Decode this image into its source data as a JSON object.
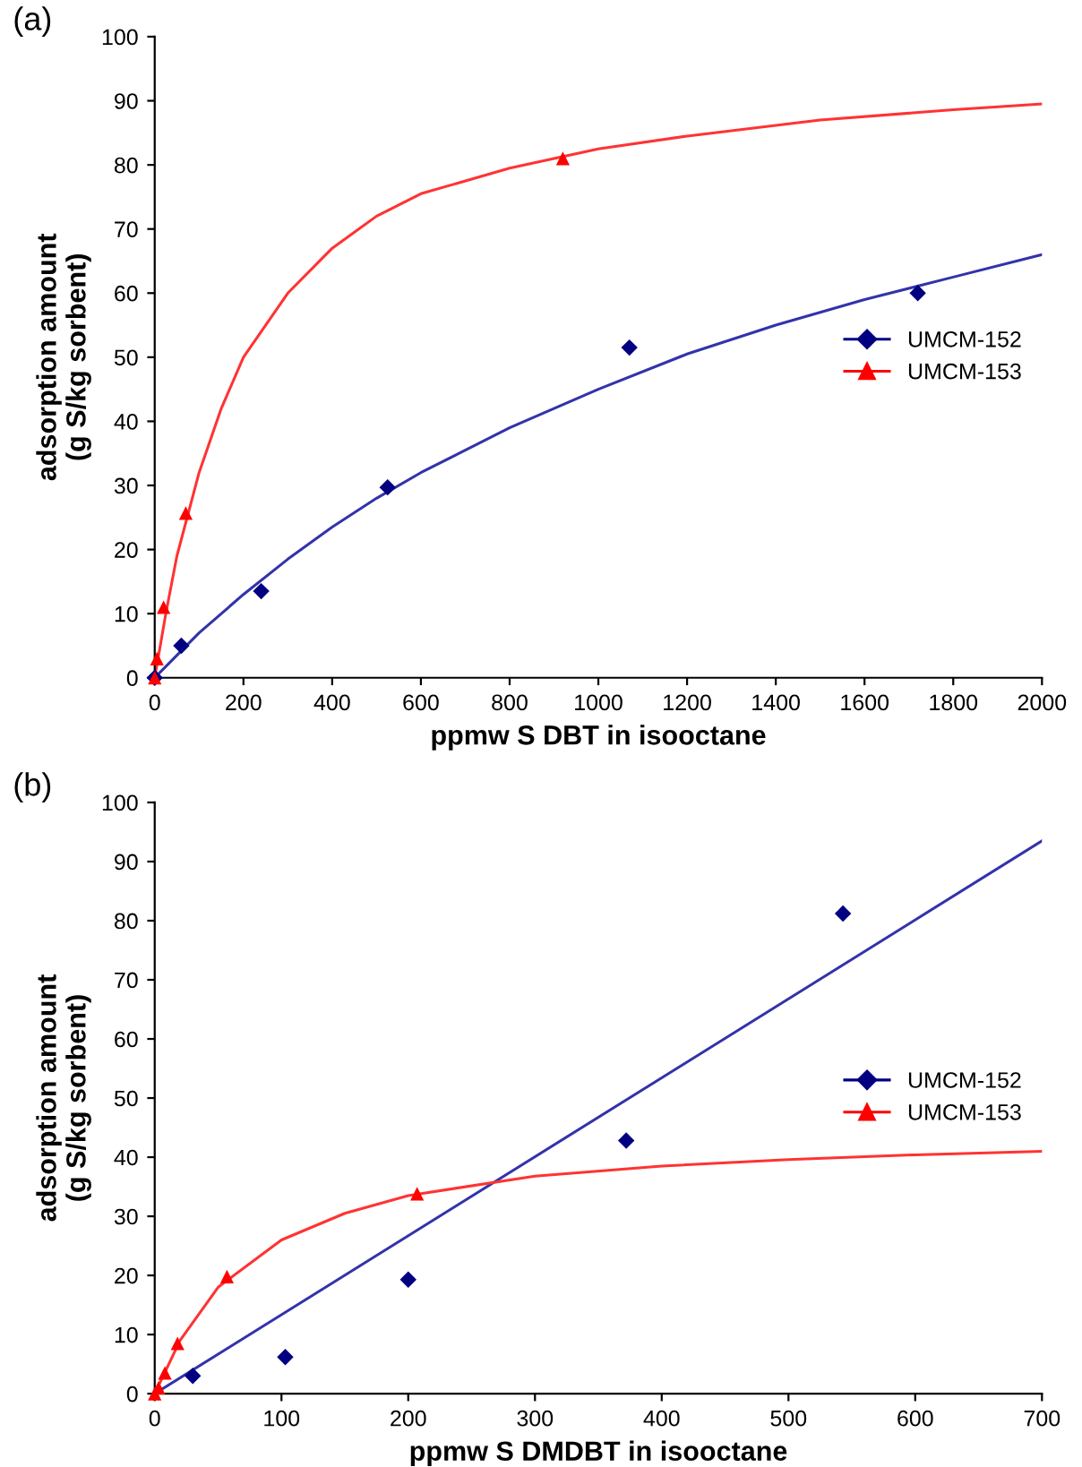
{
  "chart_data": [
    {
      "type": "scatter",
      "title": "(a)",
      "xlabel": "ppmw S DBT in isooctane",
      "ylabel": "adsorption amount\n(g S/kg sorbent)",
      "xlim": [
        0,
        2000
      ],
      "xticks": [
        0,
        200,
        400,
        600,
        800,
        1000,
        1200,
        1400,
        1600,
        1800,
        2000
      ],
      "ylim": [
        0,
        100
      ],
      "yticks": [
        0,
        10,
        20,
        30,
        40,
        50,
        60,
        70,
        80,
        90,
        100
      ],
      "grid": false,
      "legend": "right",
      "series": [
        {
          "name": "UMCM-152",
          "marker": "diamond",
          "color": "#000080",
          "x": [
            0,
            60,
            240,
            525,
            1070,
            1720
          ],
          "values": [
            0,
            5,
            13.5,
            29.7,
            51.5,
            60
          ]
        },
        {
          "name": "UMCM-153",
          "marker": "triangle",
          "color": "#ff0000",
          "x": [
            0,
            5,
            20,
            70,
            920
          ],
          "values": [
            0,
            3,
            11,
            25.7,
            81
          ]
        },
        {
          "type": "line",
          "marker": "none",
          "color": "#3333aa",
          "x": [
            0,
            100,
            200,
            300,
            400,
            500,
            600,
            800,
            1000,
            1200,
            1400,
            1600,
            1800,
            2000
          ],
          "values": [
            0,
            7,
            13,
            18.5,
            23.5,
            28,
            32,
            39,
            45,
            50.5,
            55,
            59,
            62.5,
            66
          ]
        },
        {
          "type": "line",
          "marker": "none",
          "color": "#ff3333",
          "x": [
            0,
            25,
            50,
            100,
            150,
            200,
            300,
            400,
            500,
            600,
            800,
            1000,
            1200,
            1500,
            1800,
            2000
          ],
          "values": [
            0,
            10,
            19,
            32,
            42,
            50,
            60,
            67,
            72,
            75.5,
            79.5,
            82.5,
            84.5,
            87,
            88.6,
            89.5
          ]
        }
      ]
    },
    {
      "type": "scatter",
      "title": "(b)",
      "xlabel": "ppmw S DMDBT in isooctane",
      "ylabel": "adsorption amount\n(g S/kg sorbent)",
      "xlim": [
        0,
        700
      ],
      "xticks": [
        0,
        100,
        200,
        300,
        400,
        500,
        600,
        700
      ],
      "ylim": [
        0,
        100
      ],
      "yticks": [
        0,
        10,
        20,
        30,
        40,
        50,
        60,
        70,
        80,
        90,
        100
      ],
      "grid": false,
      "legend": "right",
      "series": [
        {
          "name": "UMCM-152",
          "marker": "diamond",
          "color": "#000080",
          "x": [
            30,
            103,
            200,
            372,
            543
          ],
          "values": [
            3,
            6.2,
            19.3,
            42.8,
            81.2
          ]
        },
        {
          "name": "UMCM-153",
          "marker": "triangle",
          "color": "#ff0000",
          "x": [
            0,
            3,
            8,
            18,
            57,
            207
          ],
          "values": [
            0,
            1,
            3.5,
            8.5,
            19.8,
            33.8
          ]
        },
        {
          "type": "line",
          "marker": "none",
          "color": "#3333aa",
          "x": [
            0,
            700
          ],
          "values": [
            0,
            93.5
          ]
        },
        {
          "type": "line",
          "marker": "none",
          "color": "#ff3333",
          "x": [
            0,
            20,
            50,
            100,
            150,
            200,
            300,
            400,
            500,
            600,
            700
          ],
          "values": [
            0,
            9,
            18,
            26,
            30.5,
            33.5,
            36.8,
            38.5,
            39.6,
            40.4,
            41
          ]
        }
      ]
    }
  ]
}
